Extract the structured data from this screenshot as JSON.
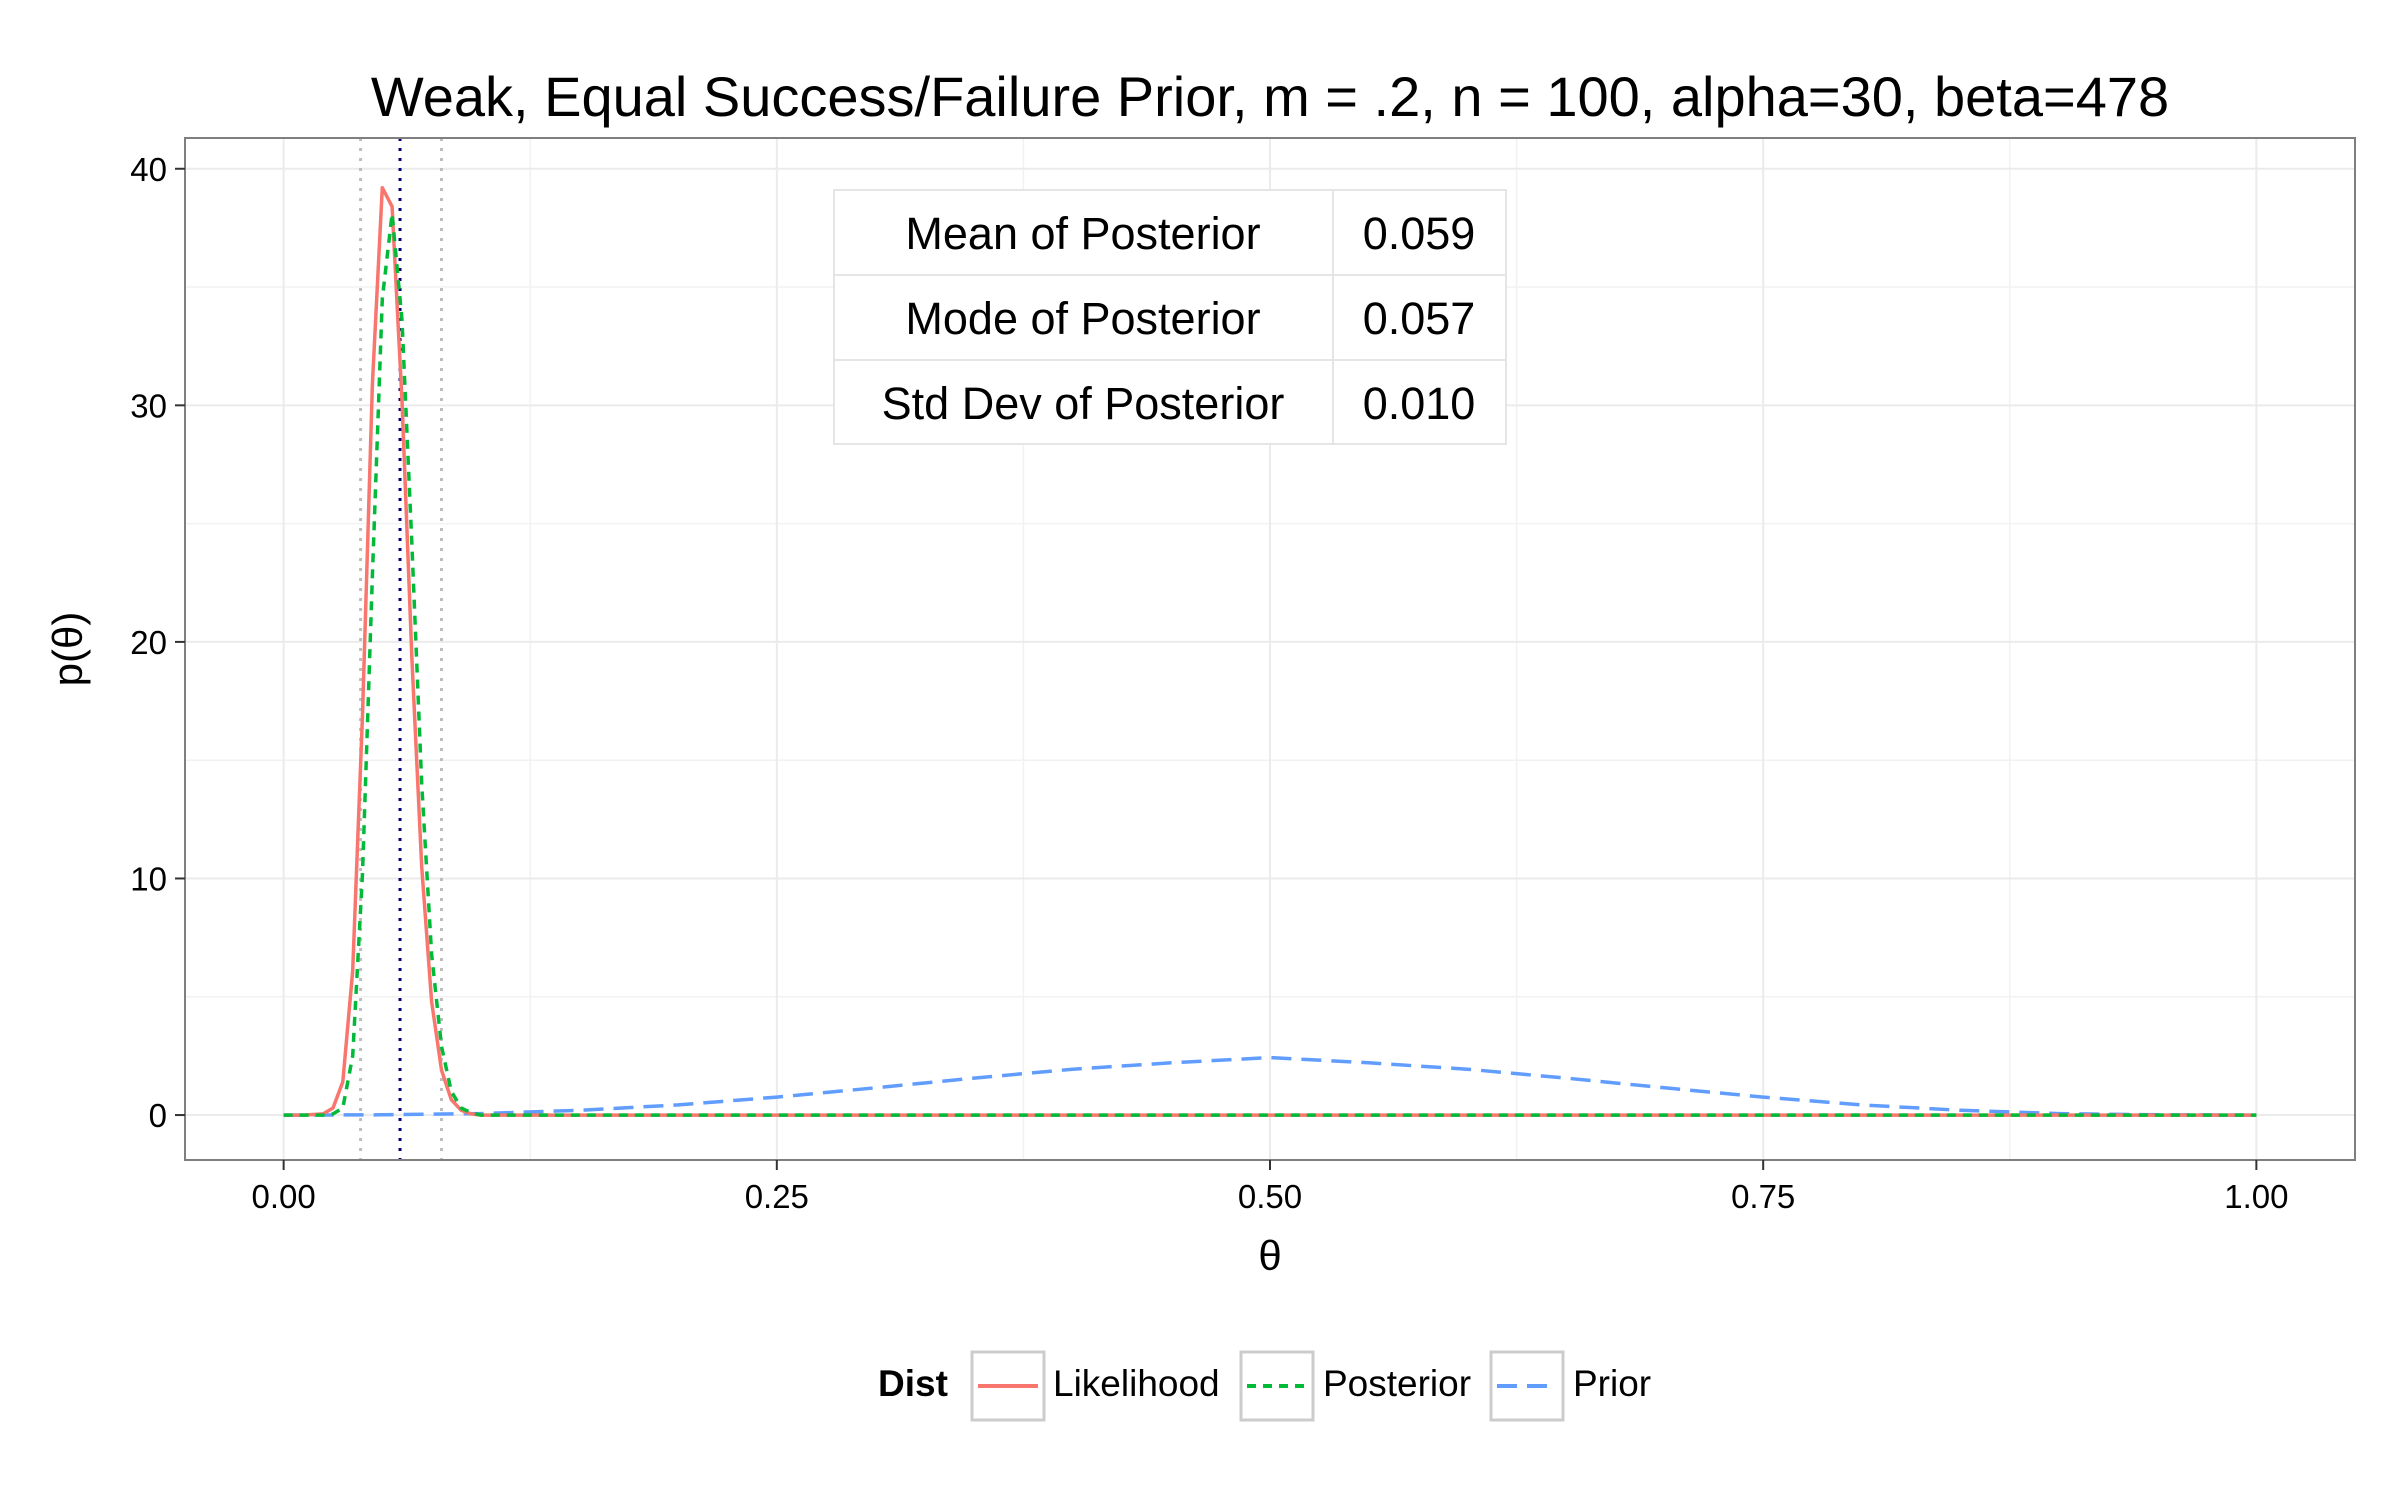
{
  "chart_data": {
    "type": "line",
    "title": "Weak, Equal Success/Failure Prior, m = .2, n = 100, alpha=30, beta=478",
    "xlabel": "θ",
    "ylabel": "p(θ)",
    "xlim": [
      -0.05,
      1.05
    ],
    "ylim": [
      -1.9,
      41.3
    ],
    "x_ticks": [
      0.0,
      0.25,
      0.5,
      0.75,
      1.0
    ],
    "x_tick_labels": [
      "0.00",
      "0.25",
      "0.50",
      "0.75",
      "1.00"
    ],
    "y_ticks": [
      0,
      10,
      20,
      30,
      40
    ],
    "y_tick_labels": [
      "0",
      "10",
      "20",
      "30",
      "40"
    ],
    "grid": true,
    "legend": {
      "title": "Dist",
      "position": "bottom",
      "items": [
        "Likelihood",
        "Posterior",
        "Prior"
      ]
    },
    "colors": {
      "Likelihood": "#F8766D",
      "Posterior": "#00BA38",
      "Prior": "#619CFF"
    },
    "vlines": [
      {
        "x": 0.039,
        "color": "#bdbdbd",
        "style": "dotted"
      },
      {
        "x": 0.059,
        "color": "#000080",
        "style": "dotted"
      },
      {
        "x": 0.08,
        "color": "#bdbdbd",
        "style": "dotted"
      }
    ],
    "series": [
      {
        "name": "Likelihood",
        "style": "solid",
        "x": [
          0.0,
          0.01,
          0.02,
          0.025,
          0.03,
          0.035,
          0.04,
          0.045,
          0.05,
          0.055,
          0.06,
          0.065,
          0.07,
          0.075,
          0.08,
          0.085,
          0.09,
          0.095,
          0.1,
          0.11,
          0.12,
          1.0
        ],
        "y": [
          0,
          0,
          0.05,
          0.3,
          1.4,
          6.1,
          16.9,
          30.9,
          39.2,
          38.4,
          30.2,
          19.3,
          10.5,
          4.8,
          1.9,
          0.65,
          0.2,
          0.05,
          0,
          0,
          0,
          0
        ]
      },
      {
        "name": "Posterior",
        "style": "dashed",
        "x": [
          0.0,
          0.02,
          0.025,
          0.03,
          0.035,
          0.04,
          0.045,
          0.05,
          0.055,
          0.06,
          0.065,
          0.07,
          0.075,
          0.08,
          0.085,
          0.09,
          0.095,
          0.1,
          0.11,
          0.12,
          1.0
        ],
        "y": [
          0,
          0,
          0.05,
          0.3,
          2.5,
          10.2,
          22.8,
          34.5,
          38.1,
          33.6,
          24.1,
          14.0,
          6.8,
          2.9,
          1.0,
          0.3,
          0.1,
          0,
          0,
          0,
          0
        ]
      },
      {
        "name": "Prior",
        "style": "longdash",
        "x": [
          0.0,
          0.05,
          0.1,
          0.15,
          0.2,
          0.25,
          0.3,
          0.35,
          0.4,
          0.45,
          0.5,
          0.55,
          0.6,
          0.65,
          0.7,
          0.75,
          0.8,
          0.85,
          0.9,
          0.95,
          1.0
        ],
        "y": [
          0,
          0.01,
          0.06,
          0.2,
          0.43,
          0.76,
          1.15,
          1.56,
          1.94,
          2.21,
          2.43,
          2.21,
          1.94,
          1.56,
          1.15,
          0.76,
          0.43,
          0.2,
          0.06,
          0.01,
          0
        ]
      }
    ],
    "table": {
      "rows": [
        {
          "label": "Mean of Posterior",
          "value": "0.059"
        },
        {
          "label": "Mode of Posterior",
          "value": "0.057"
        },
        {
          "label": "Std Dev of Posterior",
          "value": "0.010"
        }
      ]
    }
  }
}
